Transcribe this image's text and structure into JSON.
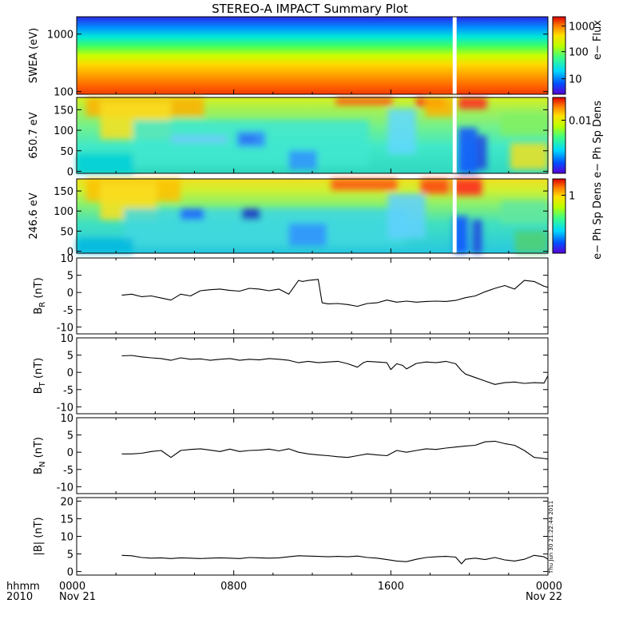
{
  "title": "STEREO-A IMPACT Summary Plot",
  "timestamp": "Thu Jun 30 21:22:44 2011",
  "x_axis": {
    "hhmm_label": "hhmm",
    "year_label": "2010",
    "ticks": [
      {
        "hours": 0,
        "time": "0000",
        "date": "Nov 21"
      },
      {
        "hours": 8,
        "time": "0800",
        "date": ""
      },
      {
        "hours": 16,
        "time": "1600",
        "date": ""
      },
      {
        "hours": 24,
        "time": "0000",
        "date": "Nov 22"
      }
    ]
  },
  "colors": {
    "background": "#ffffff",
    "trace": "#000000",
    "data_gap": "#ffffff",
    "colormap": [
      "#5a00d8",
      "#0050ff",
      "#00d8ff",
      "#40ff80",
      "#b8ff00",
      "#ffe000",
      "#ff8000",
      "#e00000"
    ]
  },
  "chart_data": [
    {
      "id": "swea",
      "type": "heatmap",
      "ylabel": "SWEA (eV)",
      "yscale": "log",
      "ylim": [
        90,
        2000
      ],
      "yticks": [
        "100",
        "1000"
      ],
      "colorbar": {
        "label": "e− Flux",
        "scale": "log",
        "ticks": [
          "10",
          "100",
          "1000"
        ]
      },
      "data_gap_hours": [
        19.15,
        19.35
      ],
      "description_values": {
        "energy_eV": [
          100,
          150,
          250,
          400,
          700,
          1000,
          1500
        ],
        "typical_flux": [
          20000,
          8000,
          2500,
          500,
          80,
          20,
          5
        ]
      }
    },
    {
      "id": "pad650",
      "type": "heatmap",
      "ylabel": "650.7 eV",
      "ylim": [
        -5,
        180
      ],
      "yticks": [
        "0",
        "50",
        "100",
        "150"
      ],
      "colorbar": {
        "label": "e− Ph Sp Dens",
        "scale": "log",
        "ticks": [
          "0.01"
        ]
      },
      "data_gap_hours": [
        19.15,
        19.35
      ]
    },
    {
      "id": "pad246",
      "type": "heatmap",
      "ylabel": "246.6 eV",
      "ylim": [
        -5,
        180
      ],
      "yticks": [
        "0",
        "50",
        "100",
        "150"
      ],
      "colorbar": {
        "label": "e− Ph Sp Dens",
        "scale": "log",
        "ticks": [
          "1"
        ]
      },
      "data_gap_hours": [
        19.15,
        19.35
      ]
    },
    {
      "id": "br",
      "type": "line",
      "ylabel_main": "B",
      "ylabel_sub": "R",
      "ylabel_unit": " (nT)",
      "ylim": [
        -12,
        10
      ],
      "yticks": [
        10,
        5,
        0,
        -5,
        -10
      ],
      "x_hours": [
        2.3,
        2.8,
        3.3,
        3.8,
        4.3,
        4.8,
        5.3,
        5.8,
        6.3,
        6.8,
        7.3,
        7.8,
        8.3,
        8.8,
        9.3,
        9.8,
        10.3,
        10.8,
        11.3,
        11.5,
        11.8,
        12.3,
        12.5,
        12.8,
        13.3,
        13.8,
        14.3,
        14.8,
        15.3,
        15.8,
        16.3,
        16.8,
        17.3,
        17.8,
        18.3,
        18.8,
        19.3,
        19.8,
        20.3,
        20.8,
        21.3,
        21.8,
        22.3,
        22.8,
        23.3,
        23.8,
        24.0
      ],
      "values": [
        -0.8,
        -0.5,
        -1.2,
        -1.0,
        -1.6,
        -2.2,
        -0.5,
        -1.0,
        0.5,
        0.8,
        1.0,
        0.6,
        0.4,
        1.2,
        1.0,
        0.5,
        1.0,
        -0.5,
        3.5,
        3.2,
        3.5,
        3.8,
        -3.0,
        -3.3,
        -3.2,
        -3.5,
        -4.0,
        -3.2,
        -3.0,
        -2.2,
        -2.8,
        -2.5,
        -2.8,
        -2.6,
        -2.5,
        -2.6,
        -2.3,
        -1.5,
        -1.0,
        0.2,
        1.2,
        2.0,
        1.0,
        3.5,
        3.2,
        1.8,
        1.5
      ]
    },
    {
      "id": "bt",
      "type": "line",
      "ylabel_main": "B",
      "ylabel_sub": "T",
      "ylabel_unit": " (nT)",
      "ylim": [
        -12,
        10
      ],
      "yticks": [
        10,
        5,
        0,
        -5,
        -10
      ],
      "x_hours": [
        2.3,
        2.8,
        3.3,
        3.8,
        4.3,
        4.8,
        5.3,
        5.8,
        6.3,
        6.8,
        7.3,
        7.8,
        8.3,
        8.8,
        9.3,
        9.8,
        10.3,
        10.8,
        11.3,
        11.8,
        12.3,
        12.8,
        13.3,
        13.8,
        14.3,
        14.6,
        14.8,
        15.3,
        15.8,
        16.0,
        16.3,
        16.6,
        16.8,
        17.3,
        17.8,
        18.3,
        18.8,
        19.3,
        19.6,
        19.8,
        20.3,
        20.8,
        21.3,
        21.8,
        22.3,
        22.8,
        23.3,
        23.8,
        24.0
      ],
      "values": [
        4.8,
        4.9,
        4.5,
        4.2,
        4.0,
        3.5,
        4.2,
        3.8,
        3.9,
        3.5,
        3.8,
        4.0,
        3.5,
        3.8,
        3.6,
        4.0,
        3.8,
        3.5,
        2.8,
        3.2,
        2.8,
        3.0,
        3.2,
        2.5,
        1.5,
        2.8,
        3.2,
        3.0,
        2.8,
        0.8,
        2.5,
        2.0,
        1.0,
        2.6,
        3.0,
        2.8,
        3.2,
        2.5,
        0.5,
        -0.5,
        -1.5,
        -2.5,
        -3.5,
        -3.0,
        -2.8,
        -3.2,
        -3.0,
        -3.1,
        -1.0
      ]
    },
    {
      "id": "bn",
      "type": "line",
      "ylabel_main": "B",
      "ylabel_sub": "N",
      "ylabel_unit": " (nT)",
      "ylim": [
        -12,
        10
      ],
      "yticks": [
        10,
        5,
        0,
        -5,
        -10
      ],
      "x_hours": [
        2.3,
        2.8,
        3.3,
        3.8,
        4.3,
        4.8,
        5.3,
        5.8,
        6.3,
        6.8,
        7.3,
        7.8,
        8.3,
        8.8,
        9.3,
        9.8,
        10.3,
        10.8,
        11.3,
        11.8,
        12.3,
        12.8,
        13.3,
        13.8,
        14.3,
        14.8,
        15.3,
        15.8,
        16.3,
        16.8,
        17.3,
        17.8,
        18.3,
        18.8,
        19.3,
        19.8,
        20.3,
        20.8,
        21.3,
        21.8,
        22.3,
        22.8,
        23.3,
        23.8,
        24.0
      ],
      "values": [
        -0.5,
        -0.5,
        -0.3,
        0.2,
        0.5,
        -1.5,
        0.5,
        0.8,
        1.0,
        0.6,
        0.2,
        0.9,
        0.2,
        0.5,
        0.6,
        0.9,
        0.4,
        1.0,
        0.0,
        -0.5,
        -0.8,
        -1.0,
        -1.3,
        -1.5,
        -1.0,
        -0.5,
        -0.8,
        -1.0,
        0.5,
        0.0,
        0.5,
        1.0,
        0.8,
        1.2,
        1.5,
        1.8,
        2.0,
        3.0,
        3.2,
        2.5,
        2.0,
        0.5,
        -1.5,
        -1.8,
        -2.0
      ]
    },
    {
      "id": "bmag",
      "type": "line",
      "ylabel": "|B| (nT)",
      "ylim": [
        -1,
        21
      ],
      "yticks": [
        20,
        15,
        10,
        5,
        0
      ],
      "x_hours": [
        2.3,
        2.8,
        3.3,
        3.8,
        4.3,
        4.8,
        5.3,
        5.8,
        6.3,
        6.8,
        7.3,
        7.8,
        8.3,
        8.8,
        9.3,
        9.8,
        10.3,
        10.8,
        11.3,
        11.8,
        12.3,
        12.8,
        13.3,
        13.8,
        14.3,
        14.8,
        15.3,
        15.8,
        16.3,
        16.8,
        17.3,
        17.8,
        18.3,
        18.8,
        19.3,
        19.6,
        19.8,
        20.3,
        20.8,
        21.3,
        21.8,
        22.3,
        22.8,
        23.3,
        23.8,
        24.0
      ],
      "values": [
        4.6,
        4.5,
        4.0,
        3.8,
        3.9,
        3.7,
        3.9,
        3.8,
        3.7,
        3.8,
        3.9,
        3.8,
        3.7,
        4.0,
        3.9,
        3.8,
        3.9,
        4.2,
        4.5,
        4.4,
        4.3,
        4.2,
        4.3,
        4.2,
        4.4,
        4.0,
        3.8,
        3.4,
        3.0,
        2.8,
        3.5,
        4.0,
        4.2,
        4.3,
        4.1,
        2.2,
        3.5,
        3.8,
        3.4,
        4.0,
        3.3,
        3.0,
        3.5,
        4.6,
        4.2,
        3.5
      ]
    }
  ]
}
